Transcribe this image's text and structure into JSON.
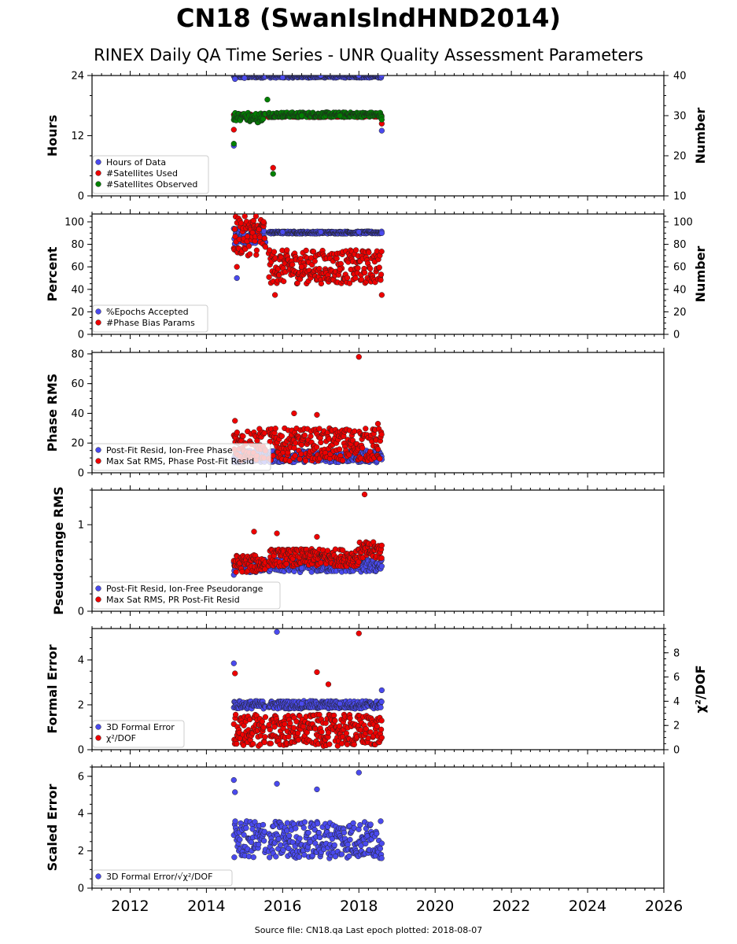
{
  "page": {
    "title": "CN18 (SwanIslndHND2014)",
    "subtitle": "RINEX Daily QA Time Series - UNR Quality Assessment Parameters",
    "footer": "Source file: CN18.qa Last epoch plotted: 2018-08-07"
  },
  "chart_data": {
    "type": "scatter",
    "x_range": [
      2011.0,
      2026.0
    ],
    "x_ticks": [
      "2012",
      "2014",
      "2016",
      "2018",
      "2020",
      "2022",
      "2024",
      "2026"
    ],
    "x_tick_values": [
      2012,
      2014,
      2016,
      2018,
      2020,
      2022,
      2024,
      2026
    ],
    "data_span": {
      "start": 2014.72,
      "end": 2018.6,
      "gap": [
        2015.55,
        2015.62
      ]
    },
    "colors": {
      "blue": "#4a4aee",
      "red": "#ee0000",
      "green": "#008000"
    },
    "panels": [
      {
        "ylabel": "Hours",
        "ylim": [
          0,
          24
        ],
        "yticks": [
          "0",
          "12",
          "24"
        ],
        "ytick_values": [
          0,
          12,
          24
        ],
        "right_ylabel": "Number",
        "right_ylim": [
          10,
          40
        ],
        "right_yticks": [
          "10",
          "20",
          "30",
          "40"
        ],
        "right_ytick_values": [
          10,
          20,
          30,
          40
        ],
        "legend": [
          {
            "label": "Hours of Data",
            "color": "#4a4aee"
          },
          {
            "label": "#Satellites Used",
            "color": "#ee0000"
          },
          {
            "label": "#Satellites Observed",
            "color": "#008000"
          }
        ],
        "series": [
          {
            "name": "Hours of Data",
            "axis": "left",
            "color": "#4a4aee",
            "points": [
              [
                2014.72,
                10
              ],
              [
                2014.75,
                23.3
              ],
              [
                2015.0,
                23.5
              ],
              [
                2016.0,
                23.6
              ],
              [
                2017.0,
                24
              ],
              [
                2018.0,
                24
              ],
              [
                2018.6,
                13
              ]
            ]
          },
          {
            "name": "#Satellites Used",
            "axis": "right",
            "color": "#ee0000",
            "points": [
              [
                2014.72,
                26.5
              ],
              [
                2015.75,
                17
              ],
              [
                2018.6,
                28
              ]
            ]
          },
          {
            "name": "#Satellites Observed",
            "axis": "right",
            "color": "#008000",
            "points": [
              [
                2014.72,
                23
              ],
              [
                2015.75,
                15.5
              ],
              [
                2015.6,
                34
              ],
              [
                2016.5,
                30
              ],
              [
                2017.5,
                30
              ],
              [
                2018.6,
                29
              ]
            ]
          }
        ]
      },
      {
        "ylabel": "Percent",
        "ylim": [
          0,
          107
        ],
        "yticks": [
          "0",
          "20",
          "40",
          "60",
          "80",
          "100"
        ],
        "ytick_values": [
          0,
          20,
          40,
          60,
          80,
          100
        ],
        "right_ylabel": "Number",
        "right_ylim": [
          0,
          107
        ],
        "right_yticks": [
          "0",
          "20",
          "40",
          "60",
          "80",
          "100"
        ],
        "right_ytick_values": [
          0,
          20,
          40,
          60,
          80,
          100
        ],
        "legend": [
          {
            "label": "%Epochs Accepted",
            "color": "#4a4aee"
          },
          {
            "label": "#Phase Bias Params",
            "color": "#ee0000"
          }
        ],
        "series": [
          {
            "name": "%Epochs Accepted",
            "axis": "left",
            "color": "#4a4aee",
            "points": [
              [
                2014.8,
                50
              ],
              [
                2015.0,
                88
              ],
              [
                2016.0,
                91
              ],
              [
                2017.0,
                91
              ],
              [
                2018.0,
                91
              ],
              [
                2018.6,
                90
              ]
            ]
          },
          {
            "name": "#Phase Bias Params",
            "axis": "right",
            "color": "#ee0000",
            "points": [
              [
                2014.8,
                60
              ],
              [
                2015.3,
                105
              ],
              [
                2015.5,
                100
              ],
              [
                2015.8,
                35
              ],
              [
                2016.5,
                60
              ],
              [
                2017.5,
                58
              ],
              [
                2018.6,
                35
              ]
            ]
          }
        ]
      },
      {
        "ylabel": "Phase RMS",
        "ylim": [
          0,
          81
        ],
        "yticks": [
          "0",
          "20",
          "40",
          "60",
          "80"
        ],
        "ytick_values": [
          0,
          20,
          40,
          60,
          80
        ],
        "legend": [
          {
            "label": "Post-Fit Resid, Ion-Free Phase",
            "color": "#4a4aee"
          },
          {
            "label": "Max Sat RMS, Phase Post-Fit Resid",
            "color": "#ee0000"
          }
        ],
        "series": [
          {
            "name": "Post-Fit Resid, Ion-Free Phase",
            "axis": "left",
            "color": "#4a4aee",
            "points": [
              [
                2015.0,
                10
              ],
              [
                2016.0,
                8
              ],
              [
                2017.0,
                8.5
              ],
              [
                2018.0,
                9
              ],
              [
                2018.6,
                9
              ]
            ]
          },
          {
            "name": "Max Sat RMS, Phase Post-Fit Resid",
            "axis": "left",
            "color": "#ee0000",
            "points": [
              [
                2014.75,
                35
              ],
              [
                2016.3,
                40
              ],
              [
                2016.9,
                39
              ],
              [
                2018.0,
                78
              ],
              [
                2018.5,
                33
              ]
            ]
          }
        ]
      },
      {
        "ylabel": "Pseudorange RMS",
        "ylim": [
          0,
          1.4
        ],
        "yticks": [
          "0",
          "1"
        ],
        "ytick_values": [
          0,
          1
        ],
        "legend": [
          {
            "label": "Post-Fit Resid, Ion-Free Pseudorange",
            "color": "#4a4aee"
          },
          {
            "label": "Max Sat RMS, PR Post-Fit Resid",
            "color": "#ee0000"
          }
        ],
        "series": [
          {
            "name": "Post-Fit Resid, Ion-Free Pseudorange",
            "axis": "left",
            "color": "#4a4aee",
            "points": [
              [
                2014.72,
                0.42
              ],
              [
                2015.5,
                0.48
              ],
              [
                2016.5,
                0.5
              ],
              [
                2017.5,
                0.5
              ],
              [
                2018.6,
                0.52
              ]
            ]
          },
          {
            "name": "Max Sat RMS, PR Post-Fit Resid",
            "axis": "left",
            "color": "#ee0000",
            "points": [
              [
                2015.25,
                0.92
              ],
              [
                2015.85,
                0.9
              ],
              [
                2016.9,
                0.86
              ],
              [
                2018.15,
                1.35
              ],
              [
                2018.6,
                0.76
              ]
            ]
          }
        ]
      },
      {
        "ylabel": "Formal Error",
        "ylim": [
          0,
          5.4
        ],
        "yticks": [
          "0",
          "2",
          "4"
        ],
        "ytick_values": [
          0,
          2,
          4
        ],
        "right_ylabel": "χ²/DOF",
        "right_ylim": [
          0,
          10
        ],
        "right_yticks": [
          "0",
          "2",
          "4",
          "6",
          "8"
        ],
        "right_ytick_values": [
          0,
          2,
          4,
          6,
          8
        ],
        "legend": [
          {
            "label": "3D Formal Error",
            "color": "#4a4aee"
          },
          {
            "label": "χ²/DOF",
            "color": "#ee0000"
          }
        ],
        "series": [
          {
            "name": "3D Formal Error",
            "axis": "left",
            "color": "#4a4aee",
            "points": [
              [
                2014.72,
                3.85
              ],
              [
                2015.85,
                5.25
              ],
              [
                2016.5,
                2.05
              ],
              [
                2017.5,
                2.05
              ],
              [
                2018.6,
                2.65
              ]
            ]
          },
          {
            "name": "χ²/DOF",
            "axis": "right",
            "color": "#ee0000",
            "points": [
              [
                2014.75,
                6.3
              ],
              [
                2016.9,
                6.4
              ],
              [
                2017.2,
                5.4
              ],
              [
                2018.0,
                9.6
              ],
              [
                2018.6,
                1.0
              ]
            ]
          }
        ]
      },
      {
        "ylabel": "Scaled Error",
        "ylim": [
          0,
          6.5
        ],
        "yticks": [
          "0",
          "2",
          "4",
          "6"
        ],
        "ytick_values": [
          0,
          2,
          4,
          6
        ],
        "legend": [
          {
            "label": "3D Formal Error/√χ²/DOF",
            "color": "#4a4aee"
          }
        ],
        "series": [
          {
            "name": "3D Formal Error/√χ²/DOF",
            "axis": "left",
            "color": "#4a4aee",
            "points": [
              [
                2014.72,
                5.8
              ],
              [
                2014.75,
                5.15
              ],
              [
                2015.85,
                5.6
              ],
              [
                2016.9,
                5.3
              ],
              [
                2018.0,
                6.2
              ],
              [
                2018.6,
                2.4
              ]
            ]
          }
        ]
      }
    ]
  }
}
